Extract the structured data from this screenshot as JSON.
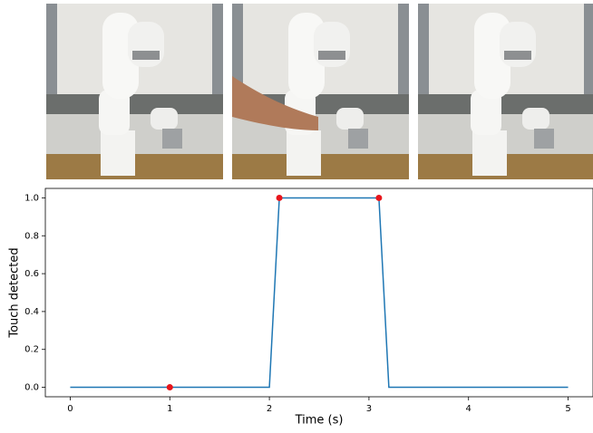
{
  "chart_data": {
    "type": "line",
    "x_label": "Time (s)",
    "y_label": "Touch detected",
    "x": [
      0,
      2,
      2.1,
      3.1,
      3.2,
      5
    ],
    "series": [
      {
        "color": "#1f77b4",
        "values": [
          0,
          0,
          1,
          1,
          0,
          0
        ]
      }
    ],
    "markers": {
      "color": "#e8151b",
      "x": [
        1,
        2.1,
        3.1
      ],
      "values": [
        0,
        1,
        1
      ]
    },
    "xlim": [
      -0.25,
      5.25
    ],
    "ylim": [
      -0.05,
      1.05
    ],
    "xticks": [
      0,
      1,
      2,
      3,
      4,
      5
    ],
    "yticks": [
      {
        "value": 0,
        "label": "0.0"
      },
      0.2,
      0.4,
      0.6,
      0.8,
      {
        "value": 1,
        "label": "1.0"
      }
    ]
  }
}
